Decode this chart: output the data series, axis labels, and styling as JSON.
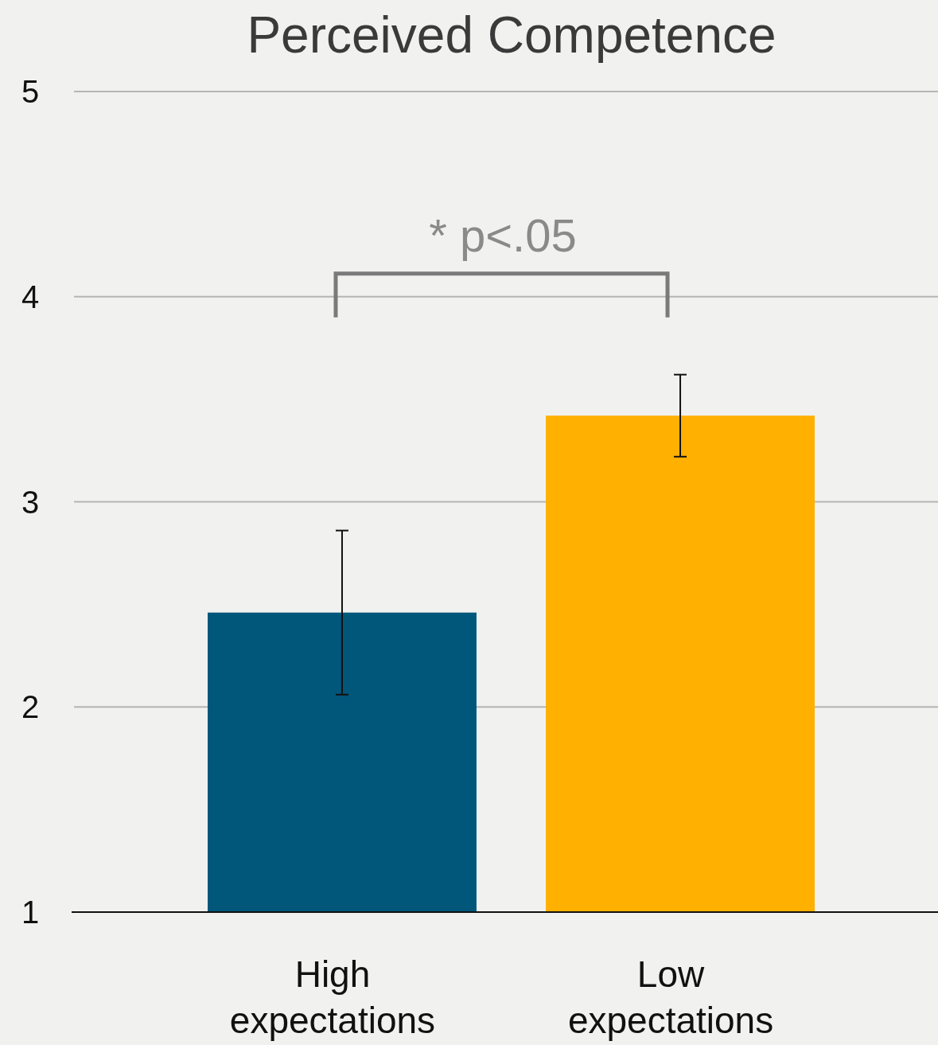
{
  "chart_data": {
    "type": "bar",
    "title": "Perceived Competence",
    "categories": [
      "High expectations",
      "Low expectations"
    ],
    "values": [
      2.46,
      3.42
    ],
    "colors": [
      "#00577a",
      "#ffb000"
    ],
    "errors": [
      0.4,
      0.2
    ],
    "ylim": [
      1,
      5
    ],
    "yticks": [
      1,
      2,
      3,
      4,
      5
    ],
    "grid": "y",
    "annotations": [
      "* p<.05"
    ]
  }
}
